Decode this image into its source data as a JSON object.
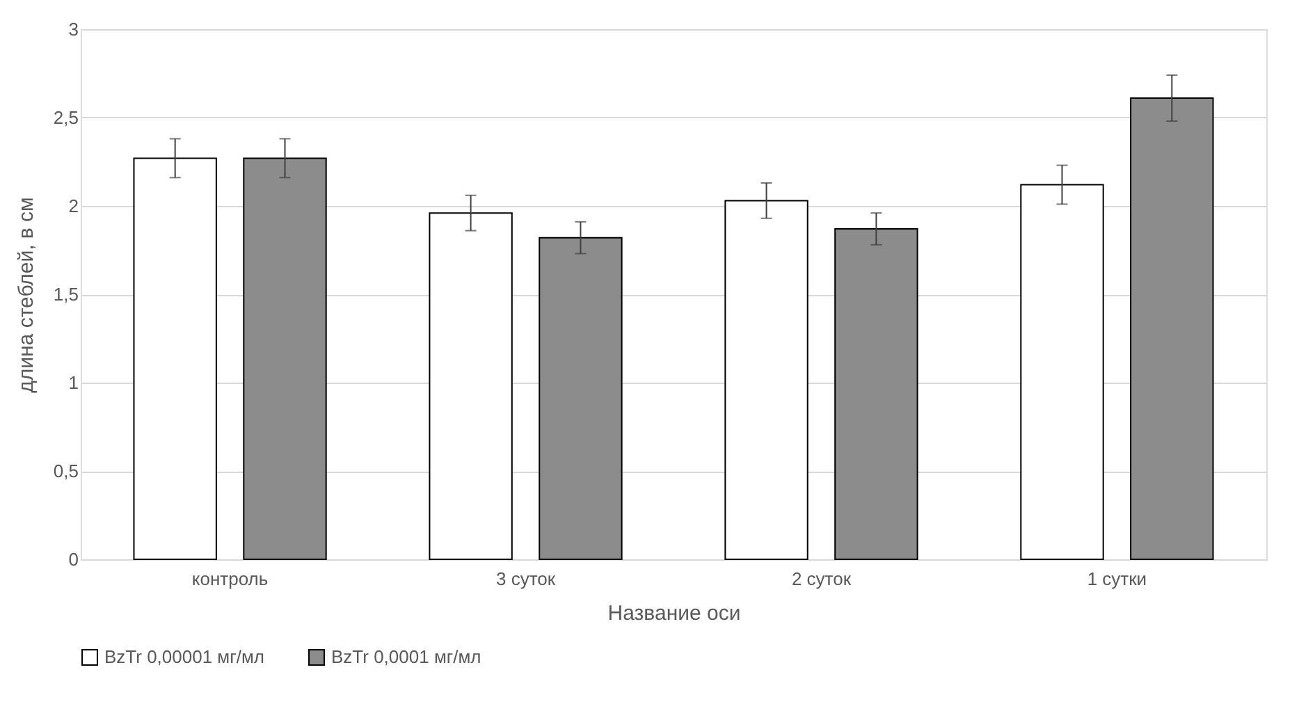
{
  "chart_data": {
    "type": "bar",
    "xlabel": "Название оси",
    "ylabel": "длина стеблей, в см",
    "categories": [
      "контроль",
      "3 суток",
      "2 суток",
      "1 сутки"
    ],
    "series": [
      {
        "name": "BzTr 0,00001 мг/мл",
        "color": "#ffffff",
        "values": [
          2.27,
          1.96,
          2.03,
          2.12
        ],
        "errors": [
          0.11,
          0.1,
          0.1,
          0.11
        ]
      },
      {
        "name": "BzTr 0,0001 мг/мл",
        "color": "#8c8c8c",
        "values": [
          2.27,
          1.82,
          1.87,
          2.61
        ],
        "errors": [
          0.11,
          0.09,
          0.09,
          0.13
        ]
      }
    ],
    "ylim": [
      0,
      3
    ],
    "yticks": [
      0,
      {
        "value": 0.5,
        "label": "0,5"
      },
      1,
      {
        "value": 1.5,
        "label": "1,5"
      },
      2,
      {
        "value": 2.5,
        "label": "2,5"
      },
      3
    ],
    "grid": "y",
    "legend": "bottom"
  }
}
